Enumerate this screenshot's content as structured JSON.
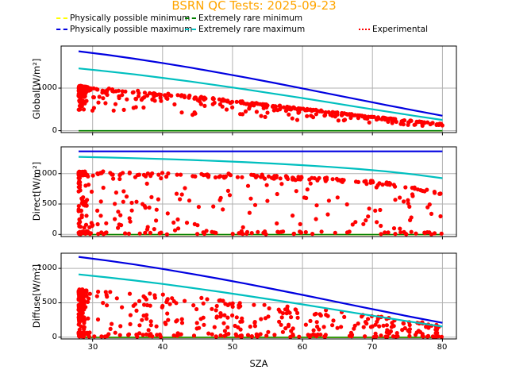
{
  "title": {
    "text": "BSRN QC Tests: 2025-09-23",
    "color": "#FFA500"
  },
  "legend": {
    "items": [
      {
        "label": "Physically possible minimum",
        "color": "#FFFF00",
        "style": "dashed"
      },
      {
        "label": "Physically possible maximum",
        "color": "#0000E0",
        "style": "dashed"
      },
      {
        "label": "Extremely rare minimum",
        "color": "#008000",
        "style": "dashed"
      },
      {
        "label": "Extremely rare maximum",
        "color": "#00BFBF",
        "style": "dashed"
      },
      {
        "label": "Experimental",
        "color": "#FF0000",
        "style": "dotted"
      }
    ]
  },
  "chart_data": {
    "type": "scatter",
    "title": "BSRN QC Tests: 2025-09-23",
    "xlabel": "SZA",
    "xlim": [
      25.5,
      82
    ],
    "xticks": [
      30,
      40,
      50,
      60,
      70,
      80
    ],
    "grid": true,
    "legend_position": "top",
    "sza_samples": [
      28,
      32,
      36,
      40,
      44,
      48,
      52,
      56,
      60,
      64,
      68,
      72,
      76,
      80
    ],
    "colors": {
      "pp_min": "#FFFF00",
      "pp_max": "#0000E0",
      "er_min": "#008000",
      "er_max": "#00BFBF",
      "experimental": "#FF0000",
      "grid": "#B0B0B0"
    },
    "panels": [
      {
        "id": "global",
        "ylabel": "Global[W/m²]",
        "ylim": [
          -45,
          1990
        ],
        "yticks": [
          0,
          1000
        ],
        "yticklabels": [
          "0",
          "1000"
        ],
        "series": [
          {
            "name": "Physically possible minimum",
            "color": "#FFFF00",
            "values": -4
          },
          {
            "name": "Extremely rare minimum",
            "color": "#008000",
            "values": -2
          },
          {
            "name": "Physically possible maximum",
            "color": "#0000E0",
            "values": [
              1867,
              1784,
              1691,
              1590,
              1482,
              1367,
              1247,
              1121,
              993,
              863,
              732,
              601,
              474,
              351
            ]
          },
          {
            "name": "Extremely rare maximum",
            "color": "#00BFBF",
            "values": [
              1464,
              1397,
              1323,
              1242,
              1156,
              1063,
              967,
              867,
              765,
              660,
              555,
              451,
              349,
              251
            ]
          }
        ],
        "experimental": {
          "name": "Experimental",
          "color": "#FF0000",
          "n": 430,
          "seed": 101,
          "sza_range": [
            28,
            80
          ],
          "value_range": [
            50,
            1065
          ],
          "envelope": {
            "type": "cospow",
            "a": 1200,
            "p": 1.3,
            "c": 40
          },
          "bands": [
            [
              0.55,
              0.92,
              1.0
            ],
            [
              0.3,
              0.75,
              0.92
            ],
            [
              0.15,
              0.45,
              0.75
            ]
          ]
        }
      },
      {
        "id": "direct",
        "ylabel": "Direct[W/m²]",
        "ylim": [
          -35,
          1440
        ],
        "yticks": [
          0,
          500,
          1000
        ],
        "yticklabels": [
          "0",
          "500",
          "1000"
        ],
        "series": [
          {
            "name": "Physically possible minimum",
            "color": "#FFFF00",
            "values": -4
          },
          {
            "name": "Extremely rare minimum",
            "color": "#008000",
            "values": -2
          },
          {
            "name": "Physically possible maximum",
            "color": "#0000E0",
            "values": 1365
          },
          {
            "name": "Extremely rare maximum",
            "color": "#00BFBF",
            "values": [
              1275,
              1265,
              1253,
              1240,
              1224,
              1207,
              1187,
              1164,
              1139,
              1110,
              1076,
              1035,
              986,
              924
            ]
          }
        ],
        "experimental": {
          "name": "Experimental",
          "color": "#FF0000",
          "n": 420,
          "seed": 202,
          "sza_range": [
            28,
            80
          ],
          "value_range": [
            0,
            1050
          ],
          "envelope": {
            "type": "beer",
            "s": 1150,
            "tau": 0.09
          },
          "bands": [
            [
              0.42,
              0.93,
              1.0
            ],
            [
              0.38,
              0.02,
              1.0
            ],
            [
              0.2,
              0.0,
              0.05
            ]
          ]
        }
      },
      {
        "id": "diffuse",
        "ylabel": "Diffuse[W/m²]",
        "ylim": [
          -25,
          1220
        ],
        "yticks": [
          0,
          500,
          1000
        ],
        "yticklabels": [
          "0",
          "500",
          "1000"
        ],
        "series": [
          {
            "name": "Physically possible minimum",
            "color": "#FFFF00",
            "values": -4
          },
          {
            "name": "Extremely rare minimum",
            "color": "#008000",
            "values": -2
          },
          {
            "name": "Physically possible maximum",
            "color": "#0000E0",
            "values": [
              1167,
              1114,
              1056,
              992,
              923,
              851,
              775,
              696,
              615,
              532,
              449,
              367,
              286,
              209
            ]
          },
          {
            "name": "Extremely rare maximum",
            "color": "#00BFBF",
            "values": [
              912,
              870,
              824,
              774,
              719,
              662,
              602,
              540,
              476,
              411,
              345,
              280,
              216,
              155
            ]
          }
        ],
        "experimental": {
          "name": "Experimental",
          "color": "#FF0000",
          "n": 450,
          "seed": 303,
          "sza_range": [
            28,
            80
          ],
          "value_range": [
            0,
            710
          ],
          "envelope": {
            "type": "cospow",
            "a": 780,
            "p": 0.85,
            "c": 0
          },
          "bands": [
            [
              0.28,
              0.78,
              1.0
            ],
            [
              0.44,
              0.15,
              0.78
            ],
            [
              0.28,
              0.008,
              0.1
            ]
          ]
        }
      }
    ]
  }
}
